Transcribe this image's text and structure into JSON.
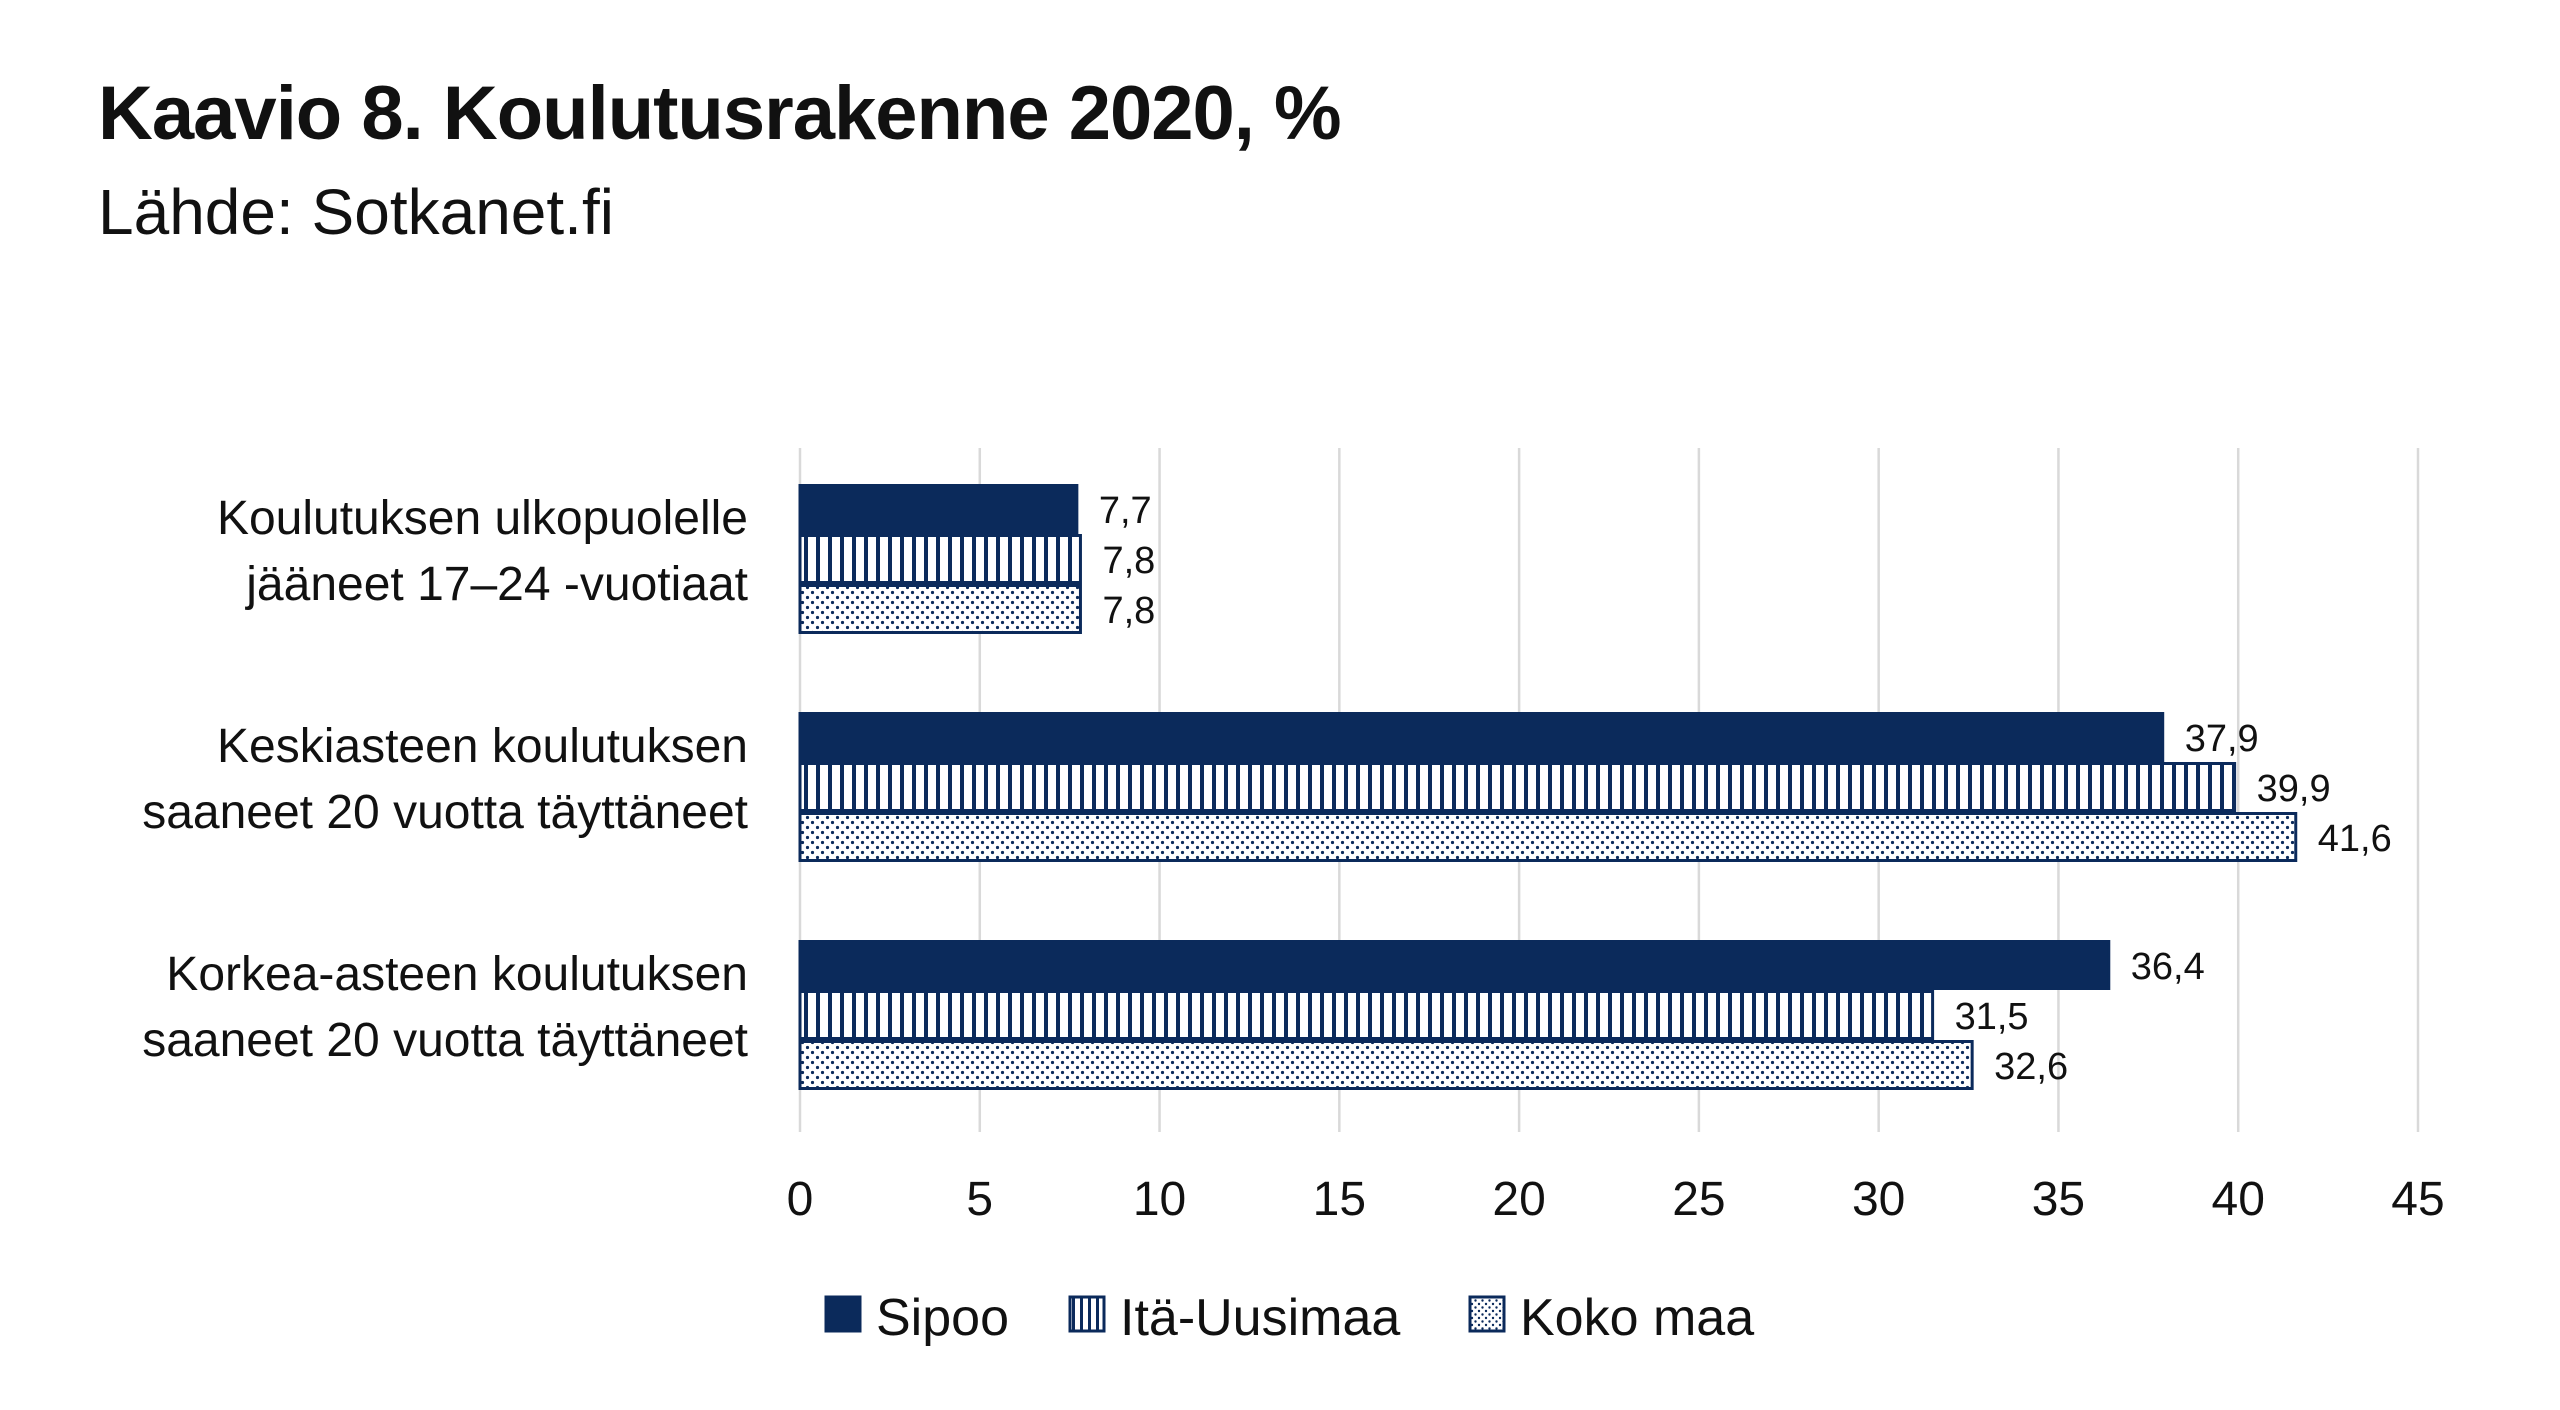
{
  "chart_data": {
    "type": "bar",
    "orientation": "horizontal",
    "title": "Kaavio 8. Koulutusrakenne 2020, %",
    "subtitle": "Lähde: Sotkanet.fi",
    "categories": [
      [
        "Koulutuksen ulkopuolelle",
        "jääneet 17–24 -vuotiaat"
      ],
      [
        "Keskiasteen koulutuksen",
        "saaneet 20 vuotta täyttäneet"
      ],
      [
        "Korkea-asteen koulutuksen",
        "saaneet 20 vuotta täyttäneet"
      ]
    ],
    "series": [
      {
        "name": "Sipoo",
        "values": [
          7.7,
          37.9,
          36.4
        ],
        "labels": [
          "7,7",
          "37,9",
          "36,4"
        ],
        "color": "#0b2a5b",
        "pattern": "solid"
      },
      {
        "name": "Itä-Uusimaa",
        "values": [
          7.8,
          39.9,
          31.5
        ],
        "labels": [
          "7,8",
          "39,9",
          "31,5"
        ],
        "color": "#0b2a5b",
        "pattern": "vertical-stripes"
      },
      {
        "name": "Koko maa",
        "values": [
          7.8,
          41.6,
          32.6
        ],
        "labels": [
          "7,8",
          "41,6",
          "32,6"
        ],
        "color": "#0b2a5b",
        "pattern": "dots"
      }
    ],
    "xlim": [
      0,
      45
    ],
    "xticks": [
      0,
      5,
      10,
      15,
      20,
      25,
      30,
      35,
      40,
      45
    ],
    "grid": true,
    "legend": "bottom"
  }
}
